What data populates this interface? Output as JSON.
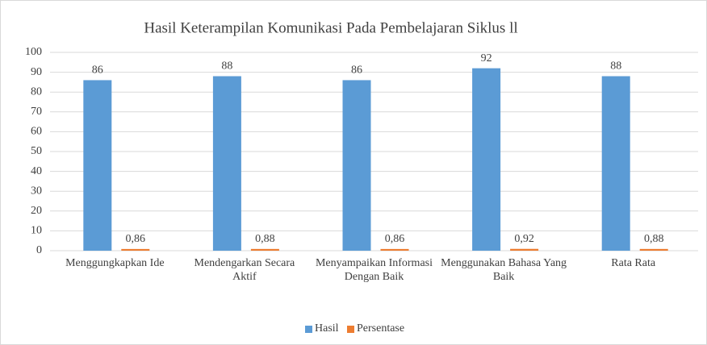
{
  "chart_data": {
    "type": "bar",
    "title": "Hasil Keterampilan Komunikasi Pada Pembelajaran Siklus ll",
    "categories": [
      "Menggungkapkan Ide",
      "Mendengarkan Secara Aktif",
      "Menyampaikan Informasi Dengan Baik",
      "Menggunakan Bahasa Yang Baik",
      "Rata Rata"
    ],
    "series": [
      {
        "name": "Hasil",
        "color": "#5b9bd5",
        "values": [
          86,
          88,
          86,
          92,
          88
        ]
      },
      {
        "name": "Persentase",
        "color": "#ed7d31",
        "values": [
          0.86,
          0.88,
          0.86,
          0.92,
          0.88
        ],
        "value_labels": [
          "0,86",
          "0,88",
          "0,86",
          "0,92",
          "0,88"
        ]
      }
    ],
    "ylim": [
      0,
      100
    ],
    "yticks": [
      0,
      10,
      20,
      30,
      40,
      50,
      60,
      70,
      80,
      90,
      100
    ],
    "grid": true,
    "legend": "bottom"
  }
}
